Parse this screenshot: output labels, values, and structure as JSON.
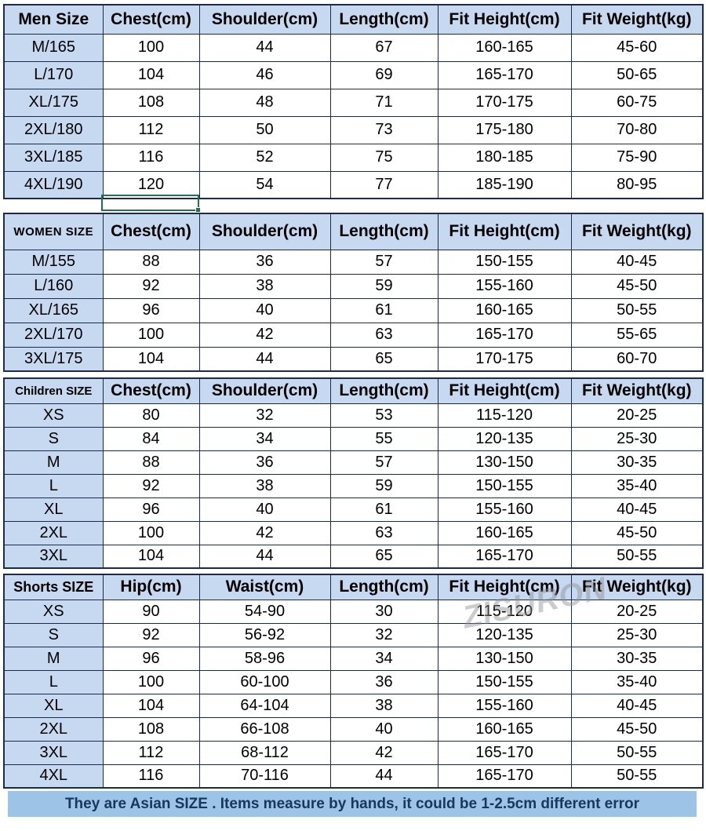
{
  "colors": {
    "header_bg": "#c6d9f1",
    "label_bg": "#c6d9f1",
    "cell_bg": "#ffffff",
    "border": "#1c2b4a",
    "footer_bg": "#9dc3e6",
    "footer_text": "#17375e",
    "selection_green": "#217346",
    "watermark_gray": "#8f8f8f"
  },
  "tables": [
    {
      "id": "men",
      "title": "Men Size",
      "columns": [
        "Chest(cm)",
        "Shoulder(cm)",
        "Length(cm)",
        "Fit Height(cm)",
        "Fit Weight(kg)"
      ],
      "rows": [
        {
          "size": "M/165",
          "values": [
            "100",
            "44",
            "67",
            "160-165",
            "45-60"
          ]
        },
        {
          "size": "L/170",
          "values": [
            "104",
            "46",
            "69",
            "165-170",
            "50-65"
          ]
        },
        {
          "size": "XL/175",
          "values": [
            "108",
            "48",
            "71",
            "170-175",
            "60-75"
          ]
        },
        {
          "size": "2XL/180",
          "values": [
            "112",
            "50",
            "73",
            "175-180",
            "70-80"
          ]
        },
        {
          "size": "3XL/185",
          "values": [
            "116",
            "52",
            "75",
            "180-185",
            "75-90"
          ]
        },
        {
          "size": "4XL/190",
          "values": [
            "120",
            "54",
            "77",
            "185-190",
            "80-95"
          ]
        }
      ]
    },
    {
      "id": "women",
      "title": "WOMEN SIZE",
      "columns": [
        "Chest(cm)",
        "Shoulder(cm)",
        "Length(cm)",
        "Fit Height(cm)",
        "Fit Weight(kg)"
      ],
      "rows": [
        {
          "size": "M/155",
          "values": [
            "88",
            "36",
            "57",
            "150-155",
            "40-45"
          ]
        },
        {
          "size": "L/160",
          "values": [
            "92",
            "38",
            "59",
            "155-160",
            "45-50"
          ]
        },
        {
          "size": "XL/165",
          "values": [
            "96",
            "40",
            "61",
            "160-165",
            "50-55"
          ]
        },
        {
          "size": "2XL/170",
          "values": [
            "100",
            "42",
            "63",
            "165-170",
            "55-65"
          ]
        },
        {
          "size": "3XL/175",
          "values": [
            "104",
            "44",
            "65",
            "170-175",
            "60-70"
          ]
        }
      ]
    },
    {
      "id": "children",
      "title": "Children SIZE",
      "columns": [
        "Chest(cm)",
        "Shoulder(cm)",
        "Length(cm)",
        "Fit Height(cm)",
        "Fit Weight(kg)"
      ],
      "rows": [
        {
          "size": "XS",
          "values": [
            "80",
            "32",
            "53",
            "115-120",
            "20-25"
          ]
        },
        {
          "size": "S",
          "values": [
            "84",
            "34",
            "55",
            "120-135",
            "25-30"
          ]
        },
        {
          "size": "M",
          "values": [
            "88",
            "36",
            "57",
            "130-150",
            "30-35"
          ]
        },
        {
          "size": "L",
          "values": [
            "92",
            "38",
            "59",
            "150-155",
            "35-40"
          ]
        },
        {
          "size": "XL",
          "values": [
            "96",
            "40",
            "61",
            "155-160",
            "40-45"
          ]
        },
        {
          "size": "2XL",
          "values": [
            "100",
            "42",
            "63",
            "160-165",
            "45-50"
          ]
        },
        {
          "size": "3XL",
          "values": [
            "104",
            "44",
            "65",
            "165-170",
            "50-55"
          ]
        }
      ]
    },
    {
      "id": "shorts",
      "title": "Shorts SIZE",
      "columns": [
        "Hip(cm)",
        "Waist(cm)",
        "Length(cm)",
        "Fit Height(cm)",
        "Fit Weight(kg)"
      ],
      "rows": [
        {
          "size": "XS",
          "values": [
            "90",
            "54-90",
            "30",
            "115-120",
            "20-25"
          ]
        },
        {
          "size": "S",
          "values": [
            "92",
            "56-92",
            "32",
            "120-135",
            "25-30"
          ]
        },
        {
          "size": "M",
          "values": [
            "96",
            "58-96",
            "34",
            "130-150",
            "30-35"
          ]
        },
        {
          "size": "L",
          "values": [
            "100",
            "60-100",
            "36",
            "150-155",
            "35-40"
          ]
        },
        {
          "size": "XL",
          "values": [
            "104",
            "64-104",
            "38",
            "155-160",
            "40-45"
          ]
        },
        {
          "size": "2XL",
          "values": [
            "108",
            "66-108",
            "40",
            "160-165",
            "45-50"
          ]
        },
        {
          "size": "3XL",
          "values": [
            "112",
            "68-112",
            "42",
            "165-170",
            "50-55"
          ]
        },
        {
          "size": "4XL",
          "values": [
            "116",
            "70-116",
            "44",
            "165-170",
            "50-55"
          ]
        }
      ]
    }
  ],
  "watermark": "ZISURON",
  "footer": {
    "note": "They are Asian SIZE . Items measure by hands, it could be 1-2.5cm different error"
  }
}
